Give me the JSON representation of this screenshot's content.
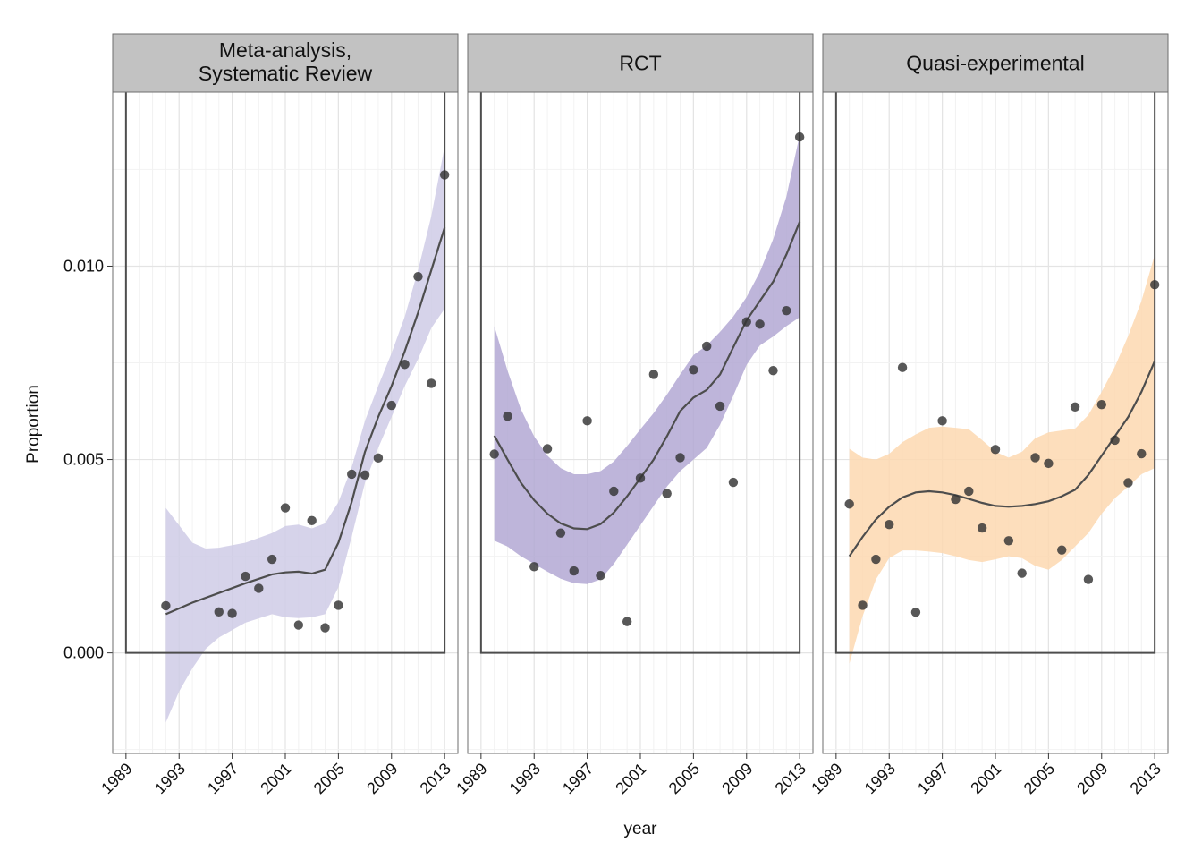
{
  "chart_data": {
    "type": "scatter",
    "xlabel": "year",
    "ylabel": "Proportion",
    "xlim": [
      1988,
      2014
    ],
    "ylim": [
      -0.0026,
      0.0145
    ],
    "x_ticks": [
      1989,
      1993,
      1997,
      2001,
      2005,
      2009,
      2013
    ],
    "y_ticks": [
      0.0,
      0.005,
      0.01
    ],
    "y_tick_labels": [
      "0.000",
      "0.005",
      "0.010"
    ],
    "grid": true,
    "legend": "none",
    "panels": [
      {
        "title_lines": [
          "Meta-analysis,",
          "Systematic Review"
        ],
        "fill_color": "#cfcbe6",
        "points": [
          [
            1992,
            0.00122
          ],
          [
            1996,
            0.00106
          ],
          [
            1997,
            0.00102
          ],
          [
            1998,
            0.00198
          ],
          [
            1999,
            0.00167
          ],
          [
            2000,
            0.00242
          ],
          [
            2001,
            0.00375
          ],
          [
            2002,
            0.00072
          ],
          [
            2003,
            0.00342
          ],
          [
            2004,
            0.00065
          ],
          [
            2005,
            0.00123
          ],
          [
            2006,
            0.00462
          ],
          [
            2007,
            0.0046
          ],
          [
            2008,
            0.00504
          ],
          [
            2009,
            0.0064
          ],
          [
            2010,
            0.00746
          ],
          [
            2011,
            0.00973
          ],
          [
            2012,
            0.00697
          ],
          [
            2013,
            0.01236
          ]
        ],
        "smooth": [
          [
            1992,
            0.001
          ],
          [
            1994,
            0.0013
          ],
          [
            1996,
            0.00155
          ],
          [
            1998,
            0.0018
          ],
          [
            2000,
            0.00203
          ],
          [
            2001,
            0.00208
          ],
          [
            2002,
            0.0021
          ],
          [
            2003,
            0.00205
          ],
          [
            2004,
            0.00215
          ],
          [
            2005,
            0.00285
          ],
          [
            2006,
            0.0039
          ],
          [
            2007,
            0.0052
          ],
          [
            2008,
            0.0061
          ],
          [
            2009,
            0.0069
          ],
          [
            2010,
            0.0078
          ],
          [
            2011,
            0.0088
          ],
          [
            2012,
            0.0099
          ],
          [
            2013,
            0.011
          ]
        ],
        "band_upper": [
          [
            1992,
            0.00375
          ],
          [
            1993,
            0.0033
          ],
          [
            1994,
            0.00285
          ],
          [
            1995,
            0.0027
          ],
          [
            1996,
            0.00272
          ],
          [
            1998,
            0.00285
          ],
          [
            2000,
            0.0031
          ],
          [
            2001,
            0.00328
          ],
          [
            2002,
            0.00332
          ],
          [
            2003,
            0.00322
          ],
          [
            2004,
            0.00335
          ],
          [
            2005,
            0.0039
          ],
          [
            2006,
            0.0048
          ],
          [
            2007,
            0.006
          ],
          [
            2008,
            0.0069
          ],
          [
            2009,
            0.00775
          ],
          [
            2010,
            0.0087
          ],
          [
            2011,
            0.0099
          ],
          [
            2012,
            0.0113
          ],
          [
            2013,
            0.0131
          ]
        ],
        "band_lower": [
          [
            1992,
            -0.0018
          ],
          [
            1993,
            -0.001
          ],
          [
            1994,
            -0.0004
          ],
          [
            1995,
            0.0001
          ],
          [
            1996,
            0.0004
          ],
          [
            1998,
            0.00078
          ],
          [
            2000,
            0.001
          ],
          [
            2001,
            0.00092
          ],
          [
            2002,
            0.0009
          ],
          [
            2003,
            0.00092
          ],
          [
            2004,
            0.001
          ],
          [
            2005,
            0.0017
          ],
          [
            2006,
            0.003
          ],
          [
            2007,
            0.0044
          ],
          [
            2008,
            0.0053
          ],
          [
            2009,
            0.0061
          ],
          [
            2010,
            0.0069
          ],
          [
            2011,
            0.0076
          ],
          [
            2012,
            0.0084
          ],
          [
            2013,
            0.0089
          ]
        ]
      },
      {
        "title_lines": [
          "RCT"
        ],
        "fill_color": "#b3a8d4",
        "points": [
          [
            1990,
            0.00514
          ],
          [
            1991,
            0.00612
          ],
          [
            1993,
            0.00223
          ],
          [
            1994,
            0.00528
          ],
          [
            1995,
            0.0031
          ],
          [
            1996,
            0.00212
          ],
          [
            1997,
            0.006
          ],
          [
            1998,
            0.002
          ],
          [
            1999,
            0.00418
          ],
          [
            2000,
            0.00081
          ],
          [
            2001,
            0.00452
          ],
          [
            2002,
            0.0072
          ],
          [
            2003,
            0.00412
          ],
          [
            2004,
            0.00505
          ],
          [
            2005,
            0.00732
          ],
          [
            2006,
            0.00793
          ],
          [
            2007,
            0.00638
          ],
          [
            2008,
            0.00441
          ],
          [
            2009,
            0.00856
          ],
          [
            2010,
            0.0085
          ],
          [
            2011,
            0.0073
          ],
          [
            2012,
            0.00885
          ],
          [
            2013,
            0.01334
          ]
        ],
        "smooth": [
          [
            1990,
            0.00562
          ],
          [
            1991,
            0.005
          ],
          [
            1992,
            0.0044
          ],
          [
            1993,
            0.00395
          ],
          [
            1994,
            0.0036
          ],
          [
            1995,
            0.00335
          ],
          [
            1996,
            0.00322
          ],
          [
            1997,
            0.0032
          ],
          [
            1998,
            0.00333
          ],
          [
            1999,
            0.00363
          ],
          [
            2000,
            0.00405
          ],
          [
            2001,
            0.00452
          ],
          [
            2002,
            0.005
          ],
          [
            2003,
            0.0056
          ],
          [
            2004,
            0.00625
          ],
          [
            2005,
            0.0066
          ],
          [
            2006,
            0.0068
          ],
          [
            2007,
            0.0072
          ],
          [
            2008,
            0.0079
          ],
          [
            2009,
            0.0086
          ],
          [
            2010,
            0.0091
          ],
          [
            2011,
            0.0096
          ],
          [
            2012,
            0.0103
          ],
          [
            2013,
            0.01115
          ]
        ],
        "band_upper": [
          [
            1990,
            0.00845
          ],
          [
            1991,
            0.0073
          ],
          [
            1992,
            0.0063
          ],
          [
            1993,
            0.0056
          ],
          [
            1994,
            0.0051
          ],
          [
            1995,
            0.00478
          ],
          [
            1996,
            0.00462
          ],
          [
            1997,
            0.00462
          ],
          [
            1998,
            0.0047
          ],
          [
            1999,
            0.00495
          ],
          [
            2000,
            0.00535
          ],
          [
            2001,
            0.00578
          ],
          [
            2002,
            0.0062
          ],
          [
            2003,
            0.00668
          ],
          [
            2004,
            0.0072
          ],
          [
            2005,
            0.0077
          ],
          [
            2006,
            0.00795
          ],
          [
            2007,
            0.0083
          ],
          [
            2008,
            0.0087
          ],
          [
            2009,
            0.0092
          ],
          [
            2010,
            0.00985
          ],
          [
            2011,
            0.0107
          ],
          [
            2012,
            0.0118
          ],
          [
            2013,
            0.0134
          ]
        ],
        "band_lower": [
          [
            1990,
            0.0029
          ],
          [
            1991,
            0.00275
          ],
          [
            1992,
            0.0025
          ],
          [
            1993,
            0.0023
          ],
          [
            1994,
            0.0021
          ],
          [
            1995,
            0.00192
          ],
          [
            1996,
            0.0018
          ],
          [
            1997,
            0.00178
          ],
          [
            1998,
            0.0019
          ],
          [
            1999,
            0.0023
          ],
          [
            2000,
            0.0028
          ],
          [
            2001,
            0.0033
          ],
          [
            2002,
            0.0038
          ],
          [
            2003,
            0.0043
          ],
          [
            2004,
            0.0047
          ],
          [
            2005,
            0.005
          ],
          [
            2006,
            0.0053
          ],
          [
            2007,
            0.0059
          ],
          [
            2008,
            0.00665
          ],
          [
            2009,
            0.00745
          ],
          [
            2010,
            0.00795
          ],
          [
            2011,
            0.00818
          ],
          [
            2012,
            0.00845
          ],
          [
            2013,
            0.00868
          ]
        ]
      },
      {
        "title_lines": [
          "Quasi-experimental"
        ],
        "fill_color": "#fdd8b0",
        "points": [
          [
            1990,
            0.00385
          ],
          [
            1991,
            0.00123
          ],
          [
            1992,
            0.00242
          ],
          [
            1993,
            0.00332
          ],
          [
            1994,
            0.00738
          ],
          [
            1995,
            0.00105
          ],
          [
            1997,
            0.006
          ],
          [
            1998,
            0.00397
          ],
          [
            1999,
            0.00418
          ],
          [
            2000,
            0.00323
          ],
          [
            2001,
            0.00526
          ],
          [
            2002,
            0.0029
          ],
          [
            2003,
            0.00206
          ],
          [
            2004,
            0.00505
          ],
          [
            2005,
            0.0049
          ],
          [
            2006,
            0.00266
          ],
          [
            2007,
            0.00636
          ],
          [
            2008,
            0.0019
          ],
          [
            2009,
            0.00642
          ],
          [
            2010,
            0.0055
          ],
          [
            2011,
            0.0044
          ],
          [
            2012,
            0.00515
          ],
          [
            2013,
            0.00952
          ]
        ],
        "smooth": [
          [
            1990,
            0.0025
          ],
          [
            1991,
            0.003
          ],
          [
            1992,
            0.00345
          ],
          [
            1993,
            0.00378
          ],
          [
            1994,
            0.00402
          ],
          [
            1995,
            0.00415
          ],
          [
            1996,
            0.00418
          ],
          [
            1997,
            0.00415
          ],
          [
            1998,
            0.00408
          ],
          [
            1999,
            0.00398
          ],
          [
            2000,
            0.00388
          ],
          [
            2001,
            0.0038
          ],
          [
            2002,
            0.00378
          ],
          [
            2003,
            0.0038
          ],
          [
            2004,
            0.00385
          ],
          [
            2005,
            0.00392
          ],
          [
            2006,
            0.00405
          ],
          [
            2007,
            0.00422
          ],
          [
            2008,
            0.0046
          ],
          [
            2009,
            0.0051
          ],
          [
            2010,
            0.0056
          ],
          [
            2011,
            0.0061
          ],
          [
            2012,
            0.00675
          ],
          [
            2013,
            0.00755
          ]
        ],
        "band_upper": [
          [
            1990,
            0.00528
          ],
          [
            1991,
            0.00505
          ],
          [
            1992,
            0.005
          ],
          [
            1993,
            0.00515
          ],
          [
            1994,
            0.00545
          ],
          [
            1995,
            0.00565
          ],
          [
            1996,
            0.00582
          ],
          [
            1997,
            0.00585
          ],
          [
            1998,
            0.00582
          ],
          [
            1999,
            0.00578
          ],
          [
            2000,
            0.0055
          ],
          [
            2001,
            0.0052
          ],
          [
            2002,
            0.00505
          ],
          [
            2003,
            0.0052
          ],
          [
            2004,
            0.00555
          ],
          [
            2005,
            0.0057
          ],
          [
            2006,
            0.00575
          ],
          [
            2007,
            0.0058
          ],
          [
            2008,
            0.00615
          ],
          [
            2009,
            0.00675
          ],
          [
            2010,
            0.0074
          ],
          [
            2011,
            0.0082
          ],
          [
            2012,
            0.0091
          ],
          [
            2013,
            0.0103
          ]
        ],
        "band_lower": [
          [
            1990,
            -0.00028
          ],
          [
            1991,
            0.00095
          ],
          [
            1992,
            0.0019
          ],
          [
            1993,
            0.00245
          ],
          [
            1994,
            0.00265
          ],
          [
            1995,
            0.00265
          ],
          [
            1996,
            0.00262
          ],
          [
            1997,
            0.00258
          ],
          [
            1998,
            0.0025
          ],
          [
            1999,
            0.0024
          ],
          [
            2000,
            0.00235
          ],
          [
            2001,
            0.00242
          ],
          [
            2002,
            0.0025
          ],
          [
            2003,
            0.00245
          ],
          [
            2004,
            0.00225
          ],
          [
            2005,
            0.00215
          ],
          [
            2006,
            0.0024
          ],
          [
            2007,
            0.00275
          ],
          [
            2008,
            0.0031
          ],
          [
            2009,
            0.0036
          ],
          [
            2010,
            0.004
          ],
          [
            2011,
            0.0043
          ],
          [
            2012,
            0.00462
          ],
          [
            2013,
            0.00478
          ]
        ]
      }
    ]
  }
}
